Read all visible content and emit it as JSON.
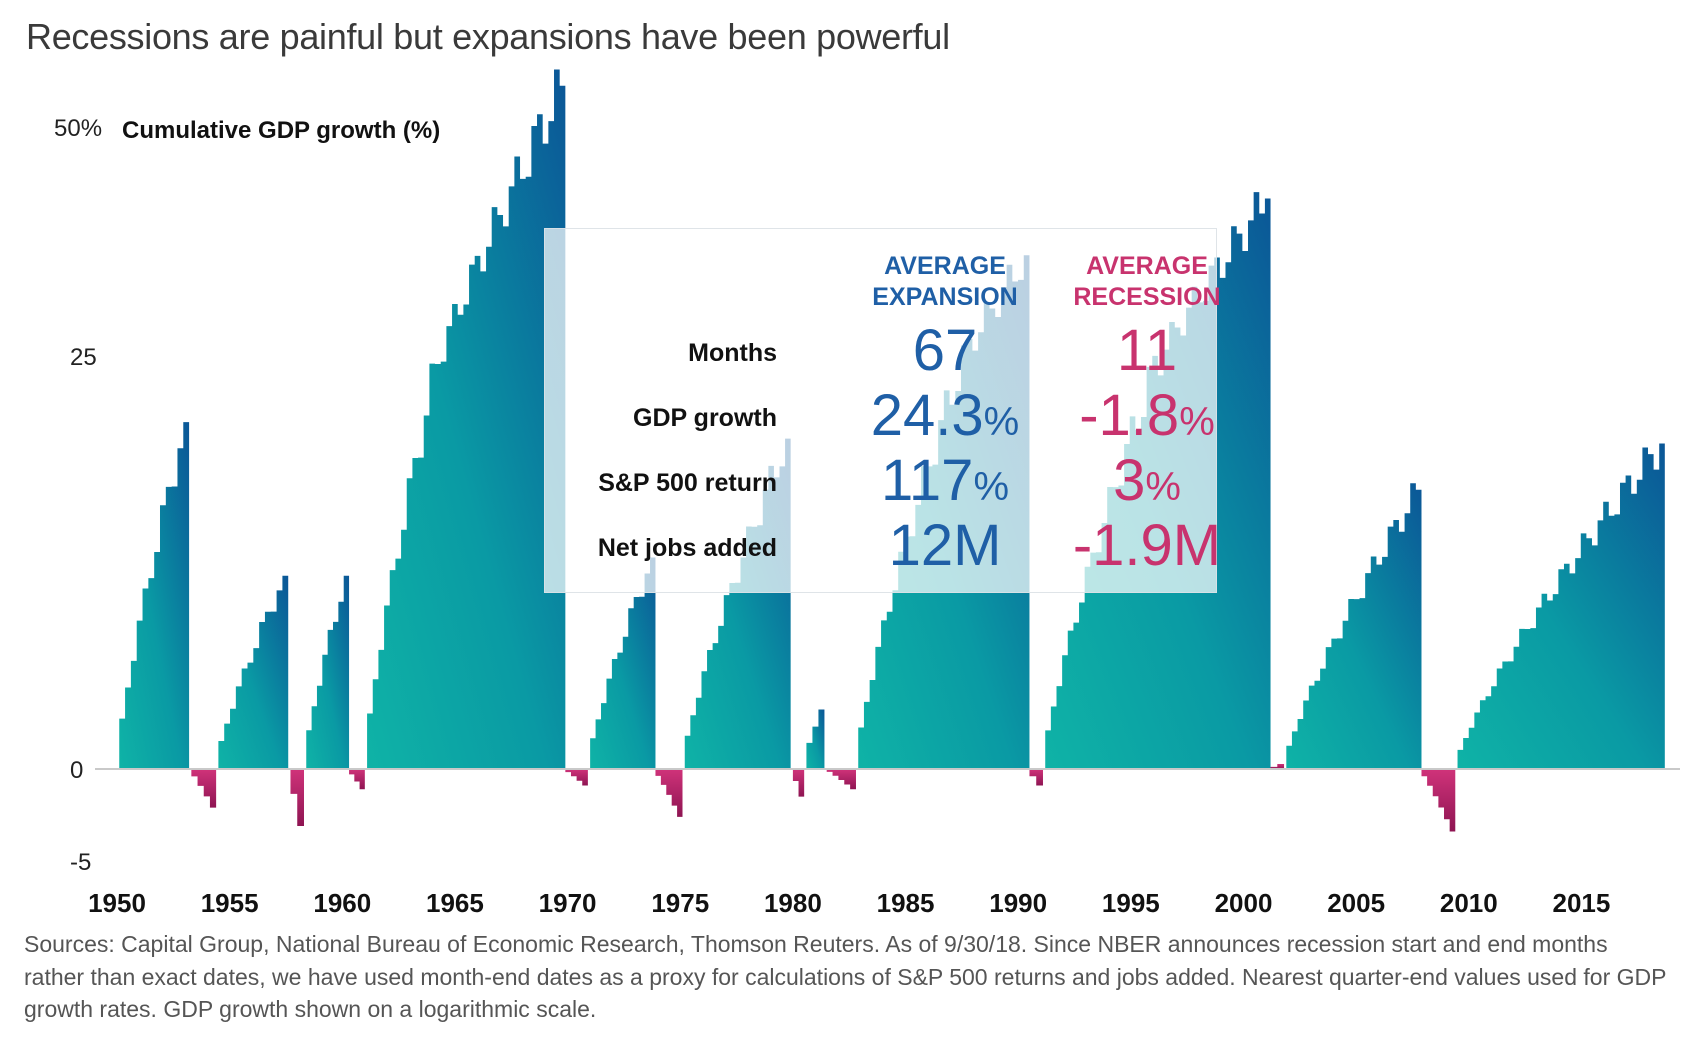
{
  "title": "Recessions are painful but expansions have been powerful",
  "footnote": "Sources: Capital Group, National Bureau of Economic Research, Thomson Reuters. As of 9/30/18. Since NBER announces recession start and end months rather than exact dates, we have used month-end dates as a proxy for calculations of S&P 500 returns and jobs added. Nearest quarter-end values used for GDP growth rates. GDP growth shown on a logarithmic scale.",
  "colors": {
    "expansion_low": "#0fb3a6",
    "expansion_high": "#0b5697",
    "recession": "#b0195f",
    "expansion_text": "#1f5fa6",
    "recession_text": "#c8336e"
  },
  "summary": {
    "headers": {
      "expansion": "AVERAGE EXPANSION",
      "recession": "AVERAGE RECESSION"
    },
    "rows": [
      {
        "label": "Months",
        "expansion": "67",
        "recession": "11"
      },
      {
        "label": "GDP growth",
        "expansion": "24.3",
        "expansion_unit": "%",
        "recession": "-1.8",
        "recession_unit": "%"
      },
      {
        "label": "S&P 500 return",
        "expansion": "117",
        "expansion_unit": "%",
        "recession": "3",
        "recession_unit": "%"
      },
      {
        "label": "Net jobs added",
        "expansion": "12M",
        "recession": "-1.9M"
      }
    ]
  },
  "chart_data": {
    "type": "area",
    "ylabel": "Cumulative GDP growth (%)",
    "yscale": "log",
    "ylim": [
      -5,
      55
    ],
    "yticks": [
      {
        "value": 50,
        "label": "50%"
      },
      {
        "value": 25,
        "label": "25"
      },
      {
        "value": 0,
        "label": "0"
      },
      {
        "value": -5,
        "label": "-5"
      }
    ],
    "xlim": [
      1949.8,
      2018.9
    ],
    "xticks": [
      "1950",
      "1955",
      "1960",
      "1965",
      "1970",
      "1975",
      "1980",
      "1985",
      "1990",
      "1995",
      "2000",
      "2005",
      "2010",
      "2015"
    ],
    "grid": false,
    "expansions": [
      {
        "start": 1950.1,
        "end": 1953.2,
        "peak": 21
      },
      {
        "start": 1954.5,
        "end": 1957.6,
        "peak": 11.7
      },
      {
        "start": 1958.4,
        "end": 1960.3,
        "peak": 11.7
      },
      {
        "start": 1961.1,
        "end": 1969.9,
        "peak": 54.5
      },
      {
        "start": 1971.0,
        "end": 1973.9,
        "peak": 12.8
      },
      {
        "start": 1975.2,
        "end": 1979.9,
        "peak": 20
      },
      {
        "start": 1980.6,
        "end": 1981.4,
        "peak": 3.6
      },
      {
        "start": 1982.9,
        "end": 1990.5,
        "peak": 36
      },
      {
        "start": 1991.2,
        "end": 2001.2,
        "peak": 42.2
      },
      {
        "start": 2001.9,
        "end": 2007.9,
        "peak": 16.9
      },
      {
        "start": 2009.5,
        "end": 2018.7,
        "peak": 19.7
      }
    ],
    "recessions": [
      {
        "start": 1953.3,
        "end": 1954.4,
        "trough": -2.1
      },
      {
        "start": 1957.7,
        "end": 1958.3,
        "trough": -3.1
      },
      {
        "start": 1960.3,
        "end": 1961.0,
        "trough": -1.1
      },
      {
        "start": 1969.9,
        "end": 1970.9,
        "trough": -0.9
      },
      {
        "start": 1973.9,
        "end": 1975.1,
        "trough": -2.6
      },
      {
        "start": 1980.0,
        "end": 1980.5,
        "trough": -1.5
      },
      {
        "start": 1981.5,
        "end": 1982.8,
        "trough": -1.1
      },
      {
        "start": 1990.5,
        "end": 1991.1,
        "trough": -0.9
      },
      {
        "start": 2001.2,
        "end": 2001.8,
        "trough": 0.3
      },
      {
        "start": 2007.9,
        "end": 2009.4,
        "trough": -3.4
      }
    ]
  }
}
